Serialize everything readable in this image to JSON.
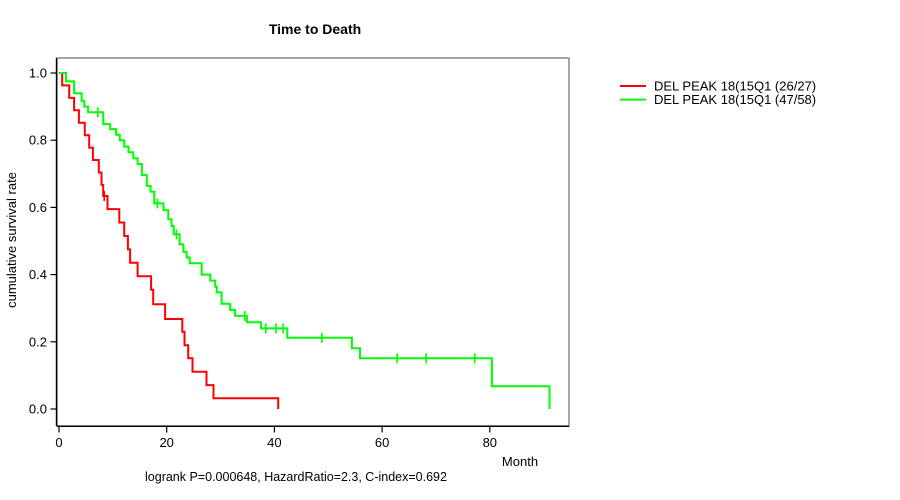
{
  "chart": {
    "title": "Time to Death",
    "ylabel": "cumulative survival rate",
    "xlabel": "Month",
    "footer": "logrank P=0.000648, HazardRatio=2.3, C-index=0.692"
  },
  "legend": {
    "items": [
      {
        "label": "DEL PEAK 18(15Q1 (26/27)",
        "color": "#ff0000"
      },
      {
        "label": "DEL PEAK 18(15Q1 (47/58)",
        "color": "#00ff00"
      }
    ]
  },
  "chart_data": {
    "type": "line",
    "subtype": "kaplan-meier-step",
    "title": "Time to Death",
    "xlabel": "Month",
    "ylabel": "cumulative survival rate",
    "xlim": [
      0,
      95
    ],
    "ylim": [
      0.0,
      1.0
    ],
    "grid": false,
    "legend_position": "right-outside",
    "x_ticks": [
      0,
      20,
      40,
      60,
      80
    ],
    "x_tick_labels": [
      "0",
      "20",
      "40",
      "60",
      "80"
    ],
    "y_ticks": [
      0.0,
      0.2,
      0.4,
      0.6,
      0.8,
      1.0
    ],
    "y_tick_labels": [
      "0.0",
      "0.2",
      "0.4",
      "0.6",
      "0.8",
      "1.0"
    ],
    "annotations": {
      "logrank_p": "0.000648",
      "hazard_ratio": "2.3",
      "c_index": "0.692"
    },
    "series": [
      {
        "name": "DEL PEAK 18(15Q1 (26/27)",
        "events_total": "26/27",
        "color": "#ff0000",
        "start": [
          0,
          1.0
        ],
        "steps": [
          [
            0.6,
            0.963
          ],
          [
            1.9,
            0.926
          ],
          [
            2.8,
            0.889
          ],
          [
            3.7,
            0.852
          ],
          [
            4.8,
            0.815
          ],
          [
            5.6,
            0.778
          ],
          [
            6.3,
            0.741
          ],
          [
            7.4,
            0.704
          ],
          [
            7.9,
            0.667
          ],
          [
            8.2,
            0.634
          ],
          [
            9.0,
            0.595
          ],
          [
            11.2,
            0.555
          ],
          [
            12.1,
            0.515
          ],
          [
            12.8,
            0.475
          ],
          [
            13.2,
            0.435
          ],
          [
            14.6,
            0.395
          ],
          [
            17.1,
            0.355
          ],
          [
            17.5,
            0.312
          ],
          [
            19.7,
            0.268
          ],
          [
            22.9,
            0.23
          ],
          [
            23.3,
            0.19
          ],
          [
            24.0,
            0.151
          ],
          [
            24.8,
            0.111
          ],
          [
            27.4,
            0.071
          ],
          [
            28.7,
            0.032
          ],
          [
            40.7,
            0.0
          ]
        ],
        "censored": [
          [
            8.4,
            0.634
          ]
        ]
      },
      {
        "name": "DEL PEAK 18(15Q1 (47/58)",
        "events_total": "47/58",
        "color": "#00ff00",
        "start": [
          0,
          1.0
        ],
        "steps": [
          [
            1.3,
            0.975
          ],
          [
            2.8,
            0.94
          ],
          [
            4.2,
            0.917
          ],
          [
            4.7,
            0.9
          ],
          [
            5.4,
            0.883
          ],
          [
            8.2,
            0.848
          ],
          [
            9.5,
            0.833
          ],
          [
            10.6,
            0.816
          ],
          [
            11.3,
            0.8
          ],
          [
            12.1,
            0.781
          ],
          [
            12.9,
            0.764
          ],
          [
            13.8,
            0.746
          ],
          [
            14.6,
            0.729
          ],
          [
            15.4,
            0.696
          ],
          [
            16.3,
            0.664
          ],
          [
            17.0,
            0.647
          ],
          [
            17.7,
            0.612
          ],
          [
            19.4,
            0.592
          ],
          [
            20.3,
            0.565
          ],
          [
            20.9,
            0.545
          ],
          [
            21.3,
            0.52
          ],
          [
            22.4,
            0.49
          ],
          [
            23.1,
            0.468
          ],
          [
            23.7,
            0.451
          ],
          [
            24.3,
            0.434
          ],
          [
            26.5,
            0.4
          ],
          [
            28.1,
            0.382
          ],
          [
            29.0,
            0.364
          ],
          [
            29.3,
            0.347
          ],
          [
            30.2,
            0.313
          ],
          [
            31.8,
            0.295
          ],
          [
            32.7,
            0.277
          ],
          [
            34.9,
            0.258
          ],
          [
            37.5,
            0.24
          ],
          [
            42.4,
            0.212
          ],
          [
            54.4,
            0.181
          ],
          [
            55.9,
            0.151
          ],
          [
            80.4,
            0.068
          ],
          [
            91.1,
            0.0
          ]
        ],
        "censored": [
          [
            7.2,
            0.883
          ],
          [
            18.3,
            0.612
          ],
          [
            21.8,
            0.52
          ],
          [
            34.5,
            0.277
          ],
          [
            38.4,
            0.24
          ],
          [
            40.3,
            0.24
          ],
          [
            41.6,
            0.24
          ],
          [
            48.8,
            0.212
          ],
          [
            62.8,
            0.151
          ],
          [
            68.2,
            0.151
          ],
          [
            77.2,
            0.151
          ]
        ]
      }
    ]
  }
}
